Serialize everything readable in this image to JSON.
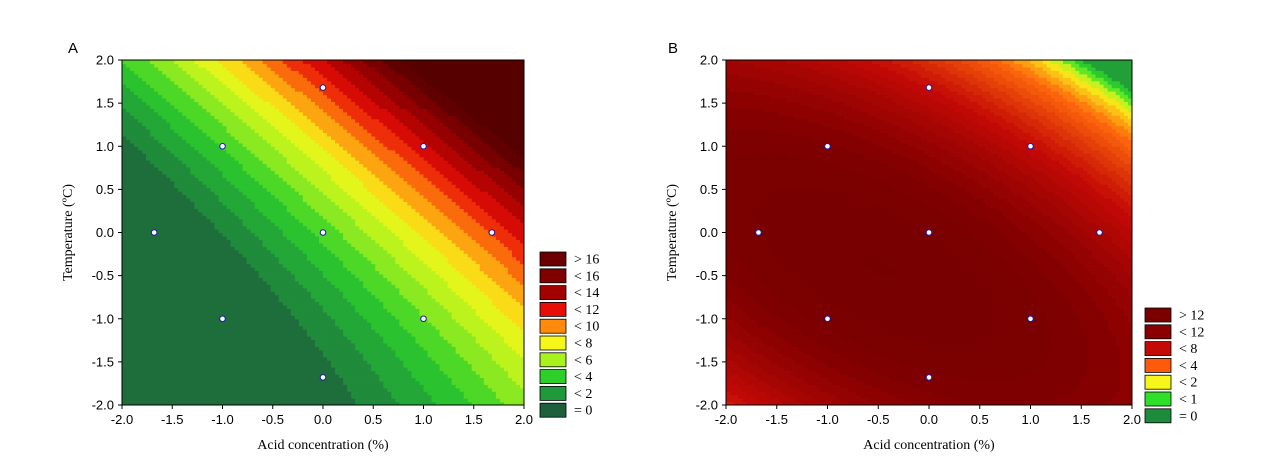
{
  "chart_data": [
    {
      "type": "heatmap",
      "subtype": "contour",
      "panel_label": "A",
      "xlabel": "Acid concentration (%)",
      "ylabel": "Temperature (ºC)",
      "xlim": [
        -2.0,
        2.0
      ],
      "ylim": [
        -2.0,
        2.0
      ],
      "x_ticks": [
        "-2.0",
        "-1.5",
        "-1.0",
        "-0.5",
        "0.0",
        "0.5",
        "1.0",
        "1.5",
        "2.0"
      ],
      "y_ticks": [
        "2.0",
        "1.5",
        "1.0",
        "0.5",
        "0.0",
        "-0.5",
        "-1.0",
        "-1.5",
        "-2.0"
      ],
      "surface": {
        "c0": 4.4,
        "cx": 3.6,
        "cy": 3.2,
        "cxx": 0.25,
        "cyy": 0.55,
        "cxy": 0.7
      },
      "contour_step": 1.0,
      "zmax": 17,
      "color_stops": [
        {
          "v": 0,
          "c": "#1e5f3c"
        },
        {
          "v": 2,
          "c": "#1f9a3a"
        },
        {
          "v": 4,
          "c": "#2ecf2a"
        },
        {
          "v": 6,
          "c": "#a8f21e"
        },
        {
          "v": 8,
          "c": "#f7f61a"
        },
        {
          "v": 10,
          "c": "#ff8a0c"
        },
        {
          "v": 12,
          "c": "#e80e08"
        },
        {
          "v": 14,
          "c": "#a30000"
        },
        {
          "v": 16,
          "c": "#6a0000"
        },
        {
          "v": 17,
          "c": "#560000"
        }
      ],
      "design_points": [
        {
          "x": -1,
          "y": 1
        },
        {
          "x": 1,
          "y": 1
        },
        {
          "x": -1,
          "y": -1
        },
        {
          "x": 1,
          "y": -1
        },
        {
          "x": -1.68,
          "y": 0
        },
        {
          "x": 1.68,
          "y": 0
        },
        {
          "x": 0,
          "y": 1.68
        },
        {
          "x": 0,
          "y": -1.68
        },
        {
          "x": 0,
          "y": 0
        }
      ],
      "legend": [
        {
          "label": "> 16",
          "color": "#6a0000"
        },
        {
          "label": "< 16",
          "color": "#800000"
        },
        {
          "label": "< 14",
          "color": "#a30000"
        },
        {
          "label": "< 12",
          "color": "#e80e08"
        },
        {
          "label": "< 10",
          "color": "#ff8a0c"
        },
        {
          "label": "< 8",
          "color": "#f7f61a"
        },
        {
          "label": "< 6",
          "color": "#a8f21e"
        },
        {
          "label": "< 4",
          "color": "#2ecf2a"
        },
        {
          "label": "< 2",
          "color": "#1f9a3a"
        },
        {
          "label": "= 0",
          "color": "#1e5f3c"
        }
      ]
    },
    {
      "type": "heatmap",
      "subtype": "contour",
      "panel_label": "B",
      "xlabel": "Acid concentration (%)",
      "ylabel": "Temperature (ºC)",
      "xlim": [
        -2.0,
        2.0
      ],
      "ylim": [
        -2.0,
        2.0
      ],
      "x_ticks": [
        "-2.0",
        "-1.5",
        "-1.0",
        "-0.5",
        "0.0",
        "0.5",
        "1.0",
        "1.5",
        "2.0"
      ],
      "y_ticks": [
        "2.0",
        "1.5",
        "1.0",
        "0.5",
        "0.0",
        "-0.5",
        "-1.0",
        "-1.5",
        "-2.0"
      ],
      "surface": {
        "c0": 13.0,
        "cx": -1.0,
        "cy": -1.3,
        "cxx": -0.6,
        "cyy": -1.0,
        "cxy": -1.0
      },
      "contour_step": 0.5,
      "zmax": 13.5,
      "color_stops": [
        {
          "v": 0,
          "c": "#1e8a3c"
        },
        {
          "v": 1,
          "c": "#2fe02a"
        },
        {
          "v": 2,
          "c": "#f7f61a"
        },
        {
          "v": 4,
          "c": "#ff6a0c"
        },
        {
          "v": 8,
          "c": "#c40a06"
        },
        {
          "v": 12,
          "c": "#800000"
        },
        {
          "v": 13.5,
          "c": "#760000"
        }
      ],
      "design_points": [
        {
          "x": -1,
          "y": 1
        },
        {
          "x": 1,
          "y": 1
        },
        {
          "x": -1,
          "y": -1
        },
        {
          "x": 1,
          "y": -1
        },
        {
          "x": -1.68,
          "y": 0
        },
        {
          "x": 1.68,
          "y": 0
        },
        {
          "x": 0,
          "y": 1.68
        },
        {
          "x": 0,
          "y": -1.68
        },
        {
          "x": 0,
          "y": 0
        }
      ],
      "legend": [
        {
          "label": "> 12",
          "color": "#7a0000"
        },
        {
          "label": "< 12",
          "color": "#8a0000"
        },
        {
          "label": "< 8",
          "color": "#c40a06"
        },
        {
          "label": "< 4",
          "color": "#ff5a0c"
        },
        {
          "label": "< 2",
          "color": "#f7f61a"
        },
        {
          "label": "< 1",
          "color": "#2fe02a"
        },
        {
          "label": "= 0",
          "color": "#1e8a3c"
        }
      ]
    }
  ]
}
